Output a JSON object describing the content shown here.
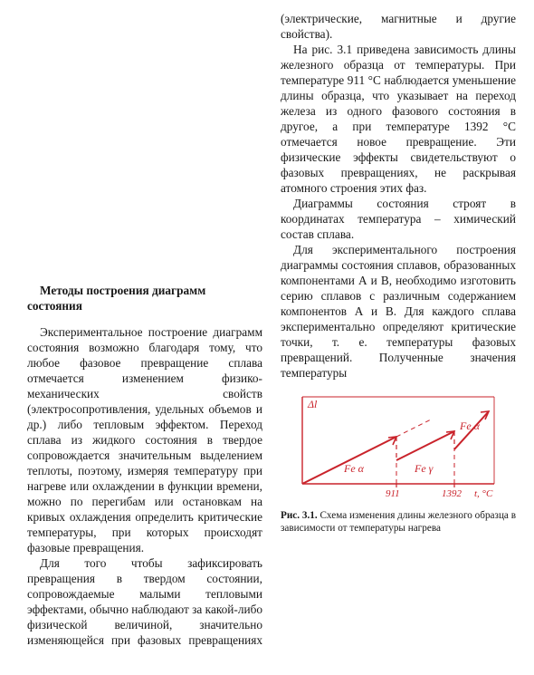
{
  "heading": {
    "line1": "Методы построения диаграмм",
    "line2": "состояния"
  },
  "paragraphs": {
    "p1": "Экспериментальное построение диаграмм состояния возможно благодаря тому, что любое фазовое превращение сплава отмечается изменением физико-механических свойств (электросопротивления, удельных объемов и др.) либо тепловым эффектом. Переход сплава из жидкого состояния в твердое сопровождается значительным выделением теплоты, поэтому, измеряя температуру при нагреве или охлаждении в функции времени, можно по перегибам или остановкам на кривых охлаждения определить критические температуры, при которых происходят фазовые превращения.",
    "p2": "Для того чтобы зафиксировать превращения в твердом состоянии, сопровождаемые малыми тепловыми эффектами, обычно наблюдают за какой-либо физической величиной, значительно изменяющейся при фазовых превращениях (электрические, магнитные и другие свойства).",
    "p3": "На рис. 3.1 приведена зависимость длины железного образца от температуры. При температуре 911 °С наблюдается уменьшение длины образца, что указывает на переход железа из одного фазового состояния в другое, а при температуре 1392 °С отмечается новое превращение. Эти физические эффекты свидетельствуют о фазовых превращениях, не раскрывая атомного строения этих фаз.",
    "p4": "Диаграммы состояния строят в координатах температура – химический состав сплава.",
    "p5": "Для экспериментального построения диаграммы состояния сплавов, образованных компонентами А и В, необходимо изготовить серию сплавов с различным содержанием компонентов А и В. Для каждого сплава экспериментально определяют критические точки, т. е. температуры фазовых превращений. Полученные значения температуры"
  },
  "figure": {
    "stroke": "#c9222a",
    "ylabel": "Δl",
    "xlabel": "t, °C",
    "xticks": [
      "911",
      "1392"
    ],
    "segments": [
      "Fe α",
      "Fe γ",
      "Fe α"
    ]
  },
  "caption": {
    "lead": "Рис. 3.1.",
    "text": " Схема изменения длины железного образца в зависимости от температуры нагрева"
  }
}
